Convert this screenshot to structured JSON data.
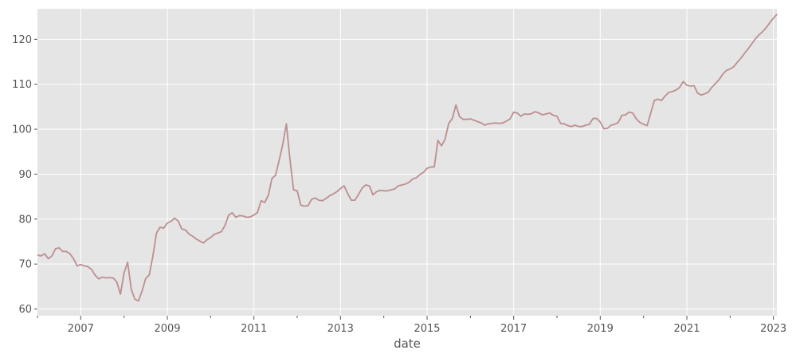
{
  "chart_data": {
    "type": "line",
    "xlabel": "date",
    "ylabel": "",
    "title": "",
    "xlim": [
      2006.0,
      2023.08
    ],
    "ylim": [
      58.5,
      126.8
    ],
    "grid": true,
    "colors": {
      "background": "#e5e5e5",
      "grid": "#ffffff",
      "line": "#bc8f8f",
      "tick_text": "#555555"
    },
    "x_ticks": [
      {
        "value": 2007,
        "label": "2007"
      },
      {
        "value": 2009,
        "label": "2009"
      },
      {
        "value": 2011,
        "label": "2011"
      },
      {
        "value": 2013,
        "label": "2013"
      },
      {
        "value": 2015,
        "label": "2015"
      },
      {
        "value": 2017,
        "label": "2017"
      },
      {
        "value": 2019,
        "label": "2019"
      },
      {
        "value": 2021,
        "label": "2021"
      },
      {
        "value": 2023,
        "label": "2023"
      }
    ],
    "x_minor_ticks": [
      2006,
      2008,
      2010,
      2012,
      2014,
      2016,
      2018,
      2020,
      2022
    ],
    "y_ticks": [
      {
        "value": 60,
        "label": "60"
      },
      {
        "value": 70,
        "label": "70"
      },
      {
        "value": 80,
        "label": "80"
      },
      {
        "value": 90,
        "label": "90"
      },
      {
        "value": 100,
        "label": "100"
      },
      {
        "value": 110,
        "label": "110"
      },
      {
        "value": 120,
        "label": "120"
      }
    ],
    "series": [
      {
        "x": [
          "2006-01",
          "2006-02",
          "2006-03",
          "2006-04",
          "2006-05",
          "2006-06",
          "2006-07",
          "2006-08",
          "2006-09",
          "2006-10",
          "2006-11",
          "2006-12",
          "2007-01",
          "2007-02",
          "2007-03",
          "2007-04",
          "2007-05",
          "2007-06",
          "2007-07",
          "2007-08",
          "2007-09",
          "2007-10",
          "2007-11",
          "2007-12",
          "2008-01",
          "2008-02",
          "2008-03",
          "2008-04",
          "2008-05",
          "2008-06",
          "2008-07",
          "2008-08",
          "2008-09",
          "2008-10",
          "2008-11",
          "2008-12",
          "2009-01",
          "2009-02",
          "2009-03",
          "2009-04",
          "2009-05",
          "2009-06",
          "2009-07",
          "2009-08",
          "2009-09",
          "2009-10",
          "2009-11",
          "2009-12",
          "2010-01",
          "2010-02",
          "2010-03",
          "2010-04",
          "2010-05",
          "2010-06",
          "2010-07",
          "2010-08",
          "2010-09",
          "2010-10",
          "2010-11",
          "2010-12",
          "2011-01",
          "2011-02",
          "2011-03",
          "2011-04",
          "2011-05",
          "2011-06",
          "2011-07",
          "2011-08",
          "2011-09",
          "2011-10",
          "2011-11",
          "2011-12",
          "2012-01",
          "2012-02",
          "2012-03",
          "2012-04",
          "2012-05",
          "2012-06",
          "2012-07",
          "2012-08",
          "2012-09",
          "2012-10",
          "2012-11",
          "2012-12",
          "2013-01",
          "2013-02",
          "2013-03",
          "2013-04",
          "2013-05",
          "2013-06",
          "2013-07",
          "2013-08",
          "2013-09",
          "2013-10",
          "2013-11",
          "2013-12",
          "2014-01",
          "2014-02",
          "2014-03",
          "2014-04",
          "2014-05",
          "2014-06",
          "2014-07",
          "2014-08",
          "2014-09",
          "2014-10",
          "2014-11",
          "2014-12",
          "2015-01",
          "2015-02",
          "2015-03",
          "2015-04",
          "2015-05",
          "2015-06",
          "2015-07",
          "2015-08",
          "2015-09",
          "2015-10",
          "2015-11",
          "2015-12",
          "2016-01",
          "2016-02",
          "2016-03",
          "2016-04",
          "2016-05",
          "2016-06",
          "2016-07",
          "2016-08",
          "2016-09",
          "2016-10",
          "2016-11",
          "2016-12",
          "2017-01",
          "2017-02",
          "2017-03",
          "2017-04",
          "2017-05",
          "2017-06",
          "2017-07",
          "2017-08",
          "2017-09",
          "2017-10",
          "2017-11",
          "2017-12",
          "2018-01",
          "2018-02",
          "2018-03",
          "2018-04",
          "2018-05",
          "2018-06",
          "2018-07",
          "2018-08",
          "2018-09",
          "2018-10",
          "2018-11",
          "2018-12",
          "2019-01",
          "2019-02",
          "2019-03",
          "2019-04",
          "2019-05",
          "2019-06",
          "2019-07",
          "2019-08",
          "2019-09",
          "2019-10",
          "2019-11",
          "2019-12",
          "2020-01",
          "2020-02",
          "2020-03",
          "2020-04",
          "2020-05",
          "2020-06",
          "2020-07",
          "2020-08",
          "2020-09",
          "2020-10",
          "2020-11",
          "2020-12",
          "2021-01",
          "2021-02",
          "2021-03",
          "2021-04",
          "2021-05",
          "2021-06",
          "2021-07",
          "2021-08",
          "2021-09",
          "2021-10",
          "2021-11",
          "2021-12",
          "2022-01",
          "2022-02",
          "2022-03",
          "2022-04",
          "2022-05",
          "2022-06",
          "2022-07",
          "2022-08",
          "2022-09",
          "2022-10",
          "2022-11",
          "2022-12",
          "2023-01",
          "2023-02"
        ],
        "y": [
          72.0,
          71.8,
          72.3,
          71.2,
          71.8,
          73.4,
          73.6,
          72.8,
          72.8,
          72.3,
          71.2,
          69.6,
          69.9,
          69.6,
          69.4,
          68.8,
          67.5,
          66.7,
          67.1,
          66.9,
          67.0,
          66.9,
          66.0,
          63.3,
          68.0,
          70.4,
          64.4,
          62.2,
          61.8,
          64.0,
          66.8,
          67.6,
          71.8,
          76.9,
          78.2,
          78.0,
          79.1,
          79.5,
          80.2,
          79.6,
          77.8,
          77.6,
          76.7,
          76.2,
          75.6,
          75.1,
          74.7,
          75.4,
          75.9,
          76.6,
          76.9,
          77.2,
          78.6,
          80.9,
          81.4,
          80.4,
          80.8,
          80.7,
          80.4,
          80.5,
          80.9,
          81.5,
          84.1,
          83.7,
          85.3,
          89.0,
          89.8,
          93.1,
          96.6,
          101.2,
          93.2,
          86.5,
          86.3,
          83.1,
          82.9,
          83.0,
          84.4,
          84.7,
          84.2,
          84.1,
          84.6,
          85.2,
          85.6,
          86.1,
          86.8,
          87.4,
          85.7,
          84.2,
          84.2,
          85.5,
          86.9,
          87.6,
          87.4,
          85.4,
          86.1,
          86.4,
          86.3,
          86.3,
          86.5,
          86.7,
          87.4,
          87.6,
          87.8,
          88.2,
          88.9,
          89.2,
          89.9,
          90.4,
          91.3,
          91.6,
          91.6,
          97.5,
          96.3,
          97.8,
          101.3,
          102.4,
          105.4,
          102.8,
          102.2,
          102.2,
          102.3,
          102.0,
          101.7,
          101.4,
          100.9,
          101.2,
          101.3,
          101.4,
          101.3,
          101.4,
          101.8,
          102.3,
          103.8,
          103.6,
          102.9,
          103.4,
          103.3,
          103.5,
          103.9,
          103.6,
          103.2,
          103.4,
          103.6,
          103.1,
          102.9,
          101.3,
          101.2,
          100.8,
          100.6,
          100.9,
          100.6,
          100.6,
          100.9,
          101.1,
          102.4,
          102.4,
          101.6,
          100.1,
          100.2,
          100.9,
          101.1,
          101.5,
          103.1,
          103.2,
          103.8,
          103.6,
          102.3,
          101.5,
          101.1,
          100.8,
          103.6,
          106.4,
          106.7,
          106.4,
          107.4,
          108.2,
          108.4,
          108.7,
          109.3,
          110.6,
          109.8,
          109.6,
          109.7,
          108.0,
          107.6,
          107.9,
          108.3,
          109.4,
          110.2,
          111.1,
          112.3,
          113.1,
          113.4,
          113.9,
          114.9,
          115.8,
          116.9,
          117.9,
          119.0,
          120.1,
          121.0,
          121.7,
          122.6,
          123.7,
          124.7,
          125.6
        ]
      }
    ]
  }
}
